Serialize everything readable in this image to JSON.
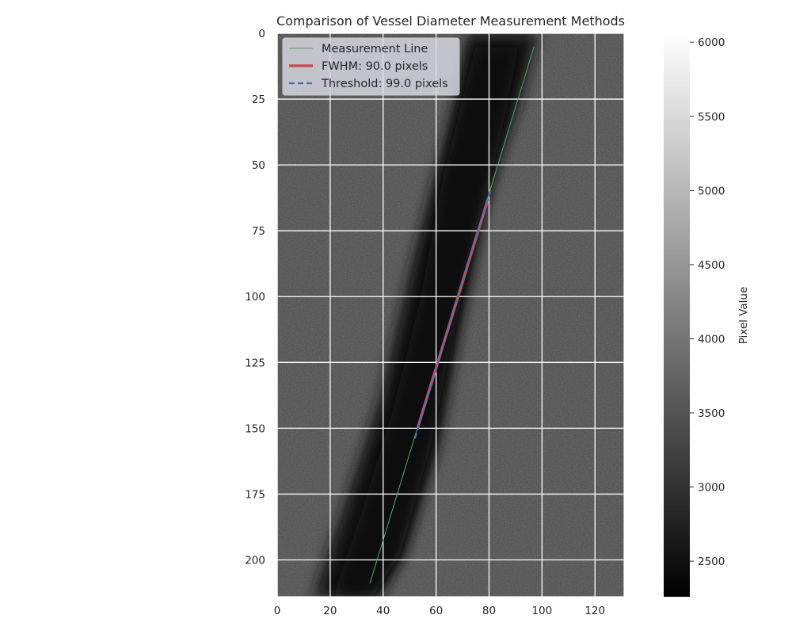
{
  "chart_data": {
    "type": "image",
    "title": "Comparison of Vessel Diameter Measurement Methods",
    "image_size": {
      "cols": 131,
      "rows": 214
    },
    "xlim": [
      0,
      131
    ],
    "ylim": [
      214,
      0
    ],
    "y_inverted": true,
    "x_ticks": [
      0,
      20,
      40,
      60,
      80,
      100,
      120
    ],
    "y_ticks": [
      0,
      25,
      50,
      75,
      100,
      125,
      150,
      175,
      200
    ],
    "grid": true,
    "colormap": "gray",
    "colorbar": {
      "label": "Pixel Value",
      "range": [
        2260,
        6060
      ],
      "ticks": [
        2500,
        3000,
        3500,
        4000,
        4500,
        5000,
        5500,
        6000
      ]
    },
    "legend_position": "upper-left",
    "series": [
      {
        "name": "Measurement Line",
        "style": "solid",
        "color": "#55a868",
        "x": [
          97,
          35
        ],
        "y": [
          5,
          209
        ]
      },
      {
        "name": "FWHM: 90.0 pixels",
        "style": "solid-thick",
        "color": "#c44e52",
        "x": [
          79.6,
          53.0
        ],
        "y": [
          63,
          150
        ]
      },
      {
        "name": "Threshold: 99.0 pixels",
        "style": "dashed",
        "color": "#4c72b0",
        "x": [
          80.4,
          51.6
        ],
        "y": [
          60,
          155
        ]
      }
    ]
  }
}
